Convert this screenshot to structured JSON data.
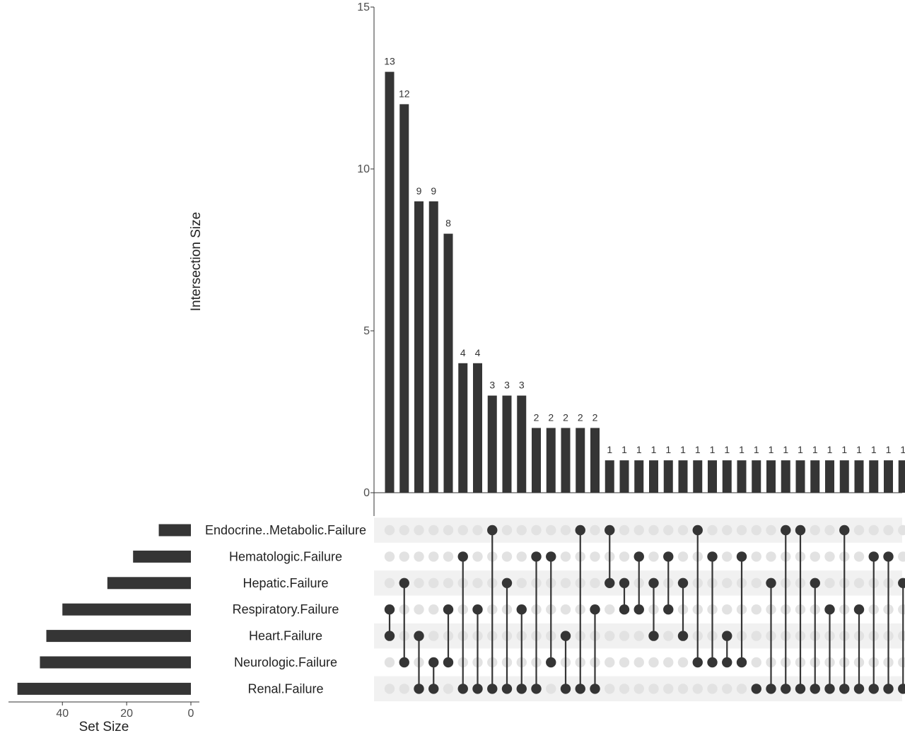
{
  "chart_data": {
    "type": "bar",
    "subtype": "upset",
    "ylabel": "Intersection Size",
    "ylim": [
      0,
      15
    ],
    "yticks": [
      0,
      5,
      10,
      15
    ],
    "set_size_label": "Set Size",
    "set_size_ticks": [
      40,
      20,
      0
    ],
    "set_size_xlim": [
      0,
      57
    ],
    "sets": [
      {
        "name": "Endocrine..Metabolic.Failure",
        "size": 10
      },
      {
        "name": "Hematologic.Failure",
        "size": 18
      },
      {
        "name": "Hepatic.Failure",
        "size": 26
      },
      {
        "name": "Respiratory.Failure",
        "size": 40
      },
      {
        "name": "Heart.Failure",
        "size": 45
      },
      {
        "name": "Neurologic.Failure",
        "size": 47
      },
      {
        "name": "Renal.Failure",
        "size": 54
      }
    ],
    "intersections": [
      {
        "size": 13,
        "members": [
          3,
          4
        ]
      },
      {
        "size": 12,
        "members": [
          2,
          5
        ]
      },
      {
        "size": 9,
        "members": [
          4,
          6
        ]
      },
      {
        "size": 9,
        "members": [
          5,
          6
        ]
      },
      {
        "size": 8,
        "members": [
          3,
          5
        ]
      },
      {
        "size": 4,
        "members": [
          1,
          6
        ]
      },
      {
        "size": 4,
        "members": [
          3,
          6
        ]
      },
      {
        "size": 3,
        "members": [
          0,
          6
        ]
      },
      {
        "size": 3,
        "members": [
          2,
          6
        ]
      },
      {
        "size": 3,
        "members": [
          3,
          6
        ]
      },
      {
        "size": 2,
        "members": [
          1,
          6
        ]
      },
      {
        "size": 2,
        "members": [
          1,
          5
        ]
      },
      {
        "size": 2,
        "members": [
          4,
          6
        ]
      },
      {
        "size": 2,
        "members": [
          0,
          6
        ]
      },
      {
        "size": 2,
        "members": [
          3,
          6
        ]
      },
      {
        "size": 1,
        "members": [
          0,
          2
        ]
      },
      {
        "size": 1,
        "members": [
          2,
          3
        ]
      },
      {
        "size": 1,
        "members": [
          1,
          3
        ]
      },
      {
        "size": 1,
        "members": [
          2,
          4
        ]
      },
      {
        "size": 1,
        "members": [
          1,
          3
        ]
      },
      {
        "size": 1,
        "members": [
          2,
          4
        ]
      },
      {
        "size": 1,
        "members": [
          0,
          5
        ]
      },
      {
        "size": 1,
        "members": [
          1,
          5
        ]
      },
      {
        "size": 1,
        "members": [
          4,
          5
        ]
      },
      {
        "size": 1,
        "members": [
          1,
          5
        ]
      },
      {
        "size": 1,
        "members": [
          6
        ]
      },
      {
        "size": 1,
        "members": [
          2,
          6
        ]
      },
      {
        "size": 1,
        "members": [
          0,
          6
        ]
      },
      {
        "size": 1,
        "members": [
          0,
          6
        ]
      },
      {
        "size": 1,
        "members": [
          2,
          6
        ]
      },
      {
        "size": 1,
        "members": [
          3,
          6
        ]
      },
      {
        "size": 1,
        "members": [
          0,
          6
        ]
      },
      {
        "size": 1,
        "members": [
          3,
          6
        ]
      },
      {
        "size": 1,
        "members": [
          1,
          6
        ]
      },
      {
        "size": 1,
        "members": [
          1,
          6
        ]
      },
      {
        "size": 1,
        "members": [
          2,
          6
        ]
      }
    ],
    "colors": {
      "bar": "#353535",
      "dot_active": "#353535",
      "dot_inactive": "#e2e2e2",
      "stripe": "#f1f1f1",
      "axis": "#333333",
      "tick_label": "#4d4d4d"
    }
  }
}
